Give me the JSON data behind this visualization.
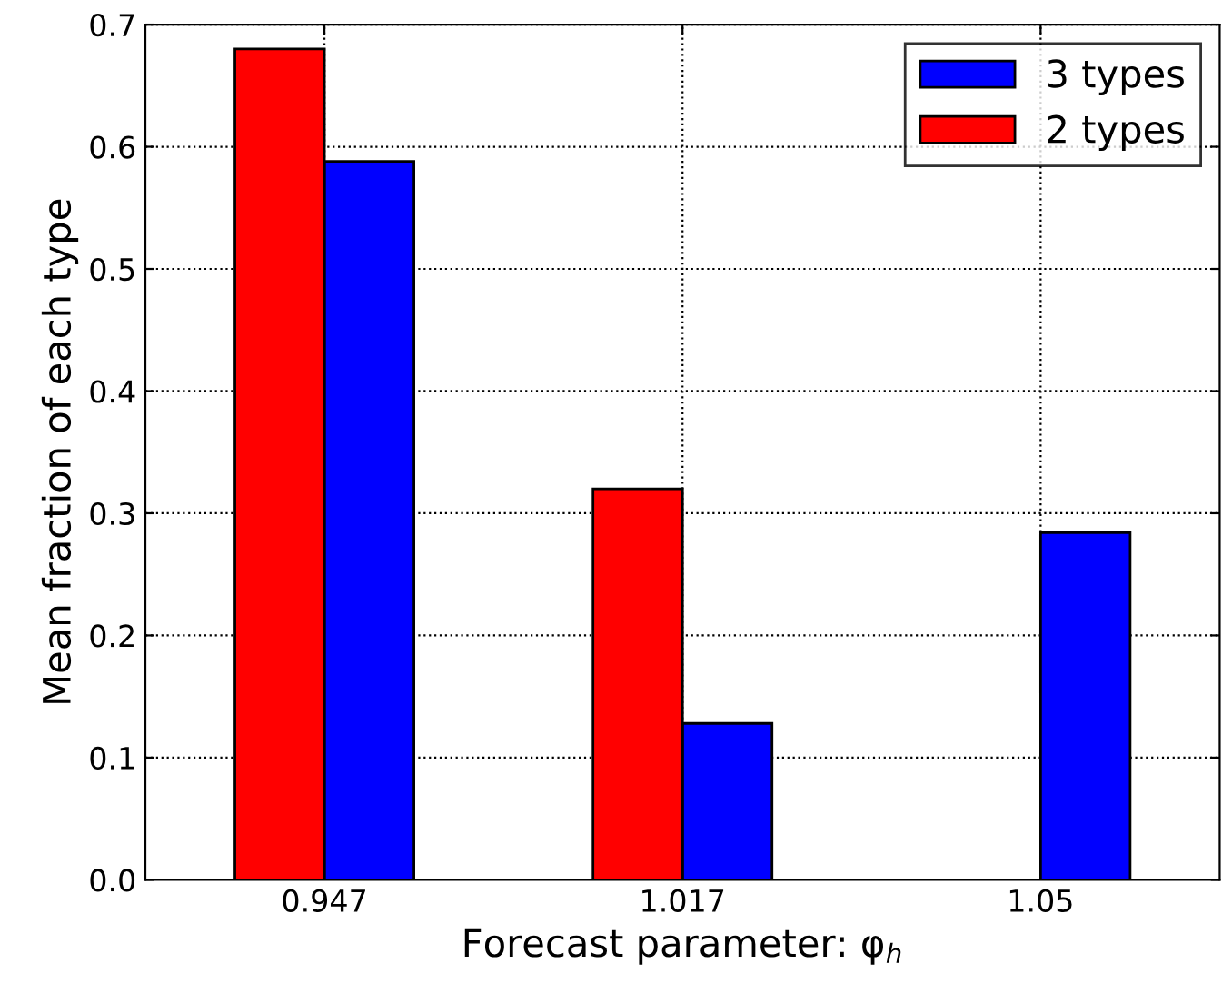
{
  "chart_data": {
    "type": "bar",
    "xlabel": "Forecast parameter: φ$_{h}$",
    "ylabel": "Mean fraction of each type",
    "categories": [
      "0.947",
      "1.017",
      "1.05"
    ],
    "series": [
      {
        "name": "3 types",
        "color": "#0000ff",
        "values": [
          0.588,
          0.128,
          0.284
        ]
      },
      {
        "name": "2 types",
        "color": "#ff0000",
        "values": [
          0.68,
          0.32,
          null
        ]
      }
    ],
    "ylim": [
      0.0,
      0.7
    ],
    "yticks": [
      {
        "value": 0,
        "label": "0.0"
      },
      0.1,
      0.2,
      0.3,
      0.4,
      0.5,
      0.6,
      0.7
    ],
    "grid": true,
    "legend": "top right",
    "line_style": "dotted"
  }
}
